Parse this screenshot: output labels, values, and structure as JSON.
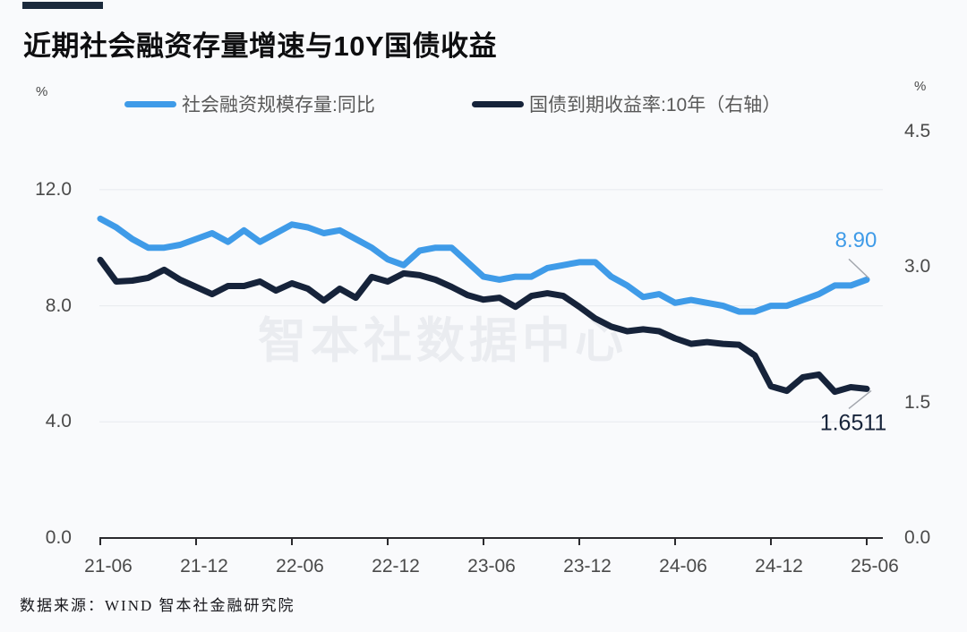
{
  "watermark": "智本社数据中心",
  "source": "数据来源：WIND 智本社金融研究院",
  "chart_data": {
    "type": "line",
    "title": "近期社会融资存量增速与10Y国债收益",
    "legend_position": "top",
    "grid": "horizontal-left-axis-ticks",
    "x_freq": "monthly",
    "x_start": "21-06",
    "x_end": "25-06",
    "x_tick_labels": [
      "21-06",
      "21-12",
      "22-06",
      "22-12",
      "23-06",
      "23-12",
      "24-06",
      "24-12",
      "25-06"
    ],
    "left_axis": {
      "unit": "%",
      "ticks": [
        0.0,
        4.0,
        8.0,
        12.0
      ],
      "tick_labels": [
        "0.0",
        "4.0",
        "8.0",
        "12.0"
      ],
      "range": [
        0,
        14
      ]
    },
    "right_axis": {
      "unit": "%",
      "ticks": [
        0.0,
        1.5,
        3.0,
        4.5
      ],
      "tick_labels": [
        "0.0",
        "1.5",
        "3.0",
        "4.5"
      ],
      "range": [
        0,
        4.5
      ]
    },
    "series": [
      {
        "name": "社会融资规模存量:同比",
        "axis": "left",
        "color": "#3F9BE8",
        "values": [
          11.0,
          10.7,
          10.3,
          10.0,
          10.0,
          10.1,
          10.3,
          10.5,
          10.2,
          10.6,
          10.2,
          10.5,
          10.8,
          10.7,
          10.5,
          10.6,
          10.3,
          10.0,
          9.6,
          9.4,
          9.9,
          10.0,
          10.0,
          9.5,
          9.0,
          8.9,
          9.0,
          9.0,
          9.3,
          9.4,
          9.5,
          9.5,
          9.0,
          8.7,
          8.3,
          8.4,
          8.1,
          8.2,
          8.1,
          8.0,
          7.8,
          7.8,
          8.0,
          8.0,
          8.2,
          8.4,
          8.7,
          8.7,
          8.9
        ]
      },
      {
        "name": "国债到期收益率:10年（右轴）",
        "axis": "right",
        "color": "#16233A",
        "values": [
          3.08,
          2.84,
          2.85,
          2.88,
          2.97,
          2.86,
          2.78,
          2.7,
          2.79,
          2.79,
          2.84,
          2.74,
          2.82,
          2.76,
          2.63,
          2.76,
          2.66,
          2.89,
          2.84,
          2.93,
          2.91,
          2.86,
          2.78,
          2.69,
          2.64,
          2.66,
          2.56,
          2.68,
          2.71,
          2.68,
          2.56,
          2.43,
          2.34,
          2.29,
          2.31,
          2.29,
          2.21,
          2.15,
          2.17,
          2.15,
          2.14,
          2.02,
          1.68,
          1.63,
          1.78,
          1.81,
          1.62,
          1.67,
          1.6511
        ]
      }
    ],
    "annotations": [
      {
        "series_index": 0,
        "label": "8.90"
      },
      {
        "series_index": 1,
        "label": "1.6511"
      }
    ]
  }
}
